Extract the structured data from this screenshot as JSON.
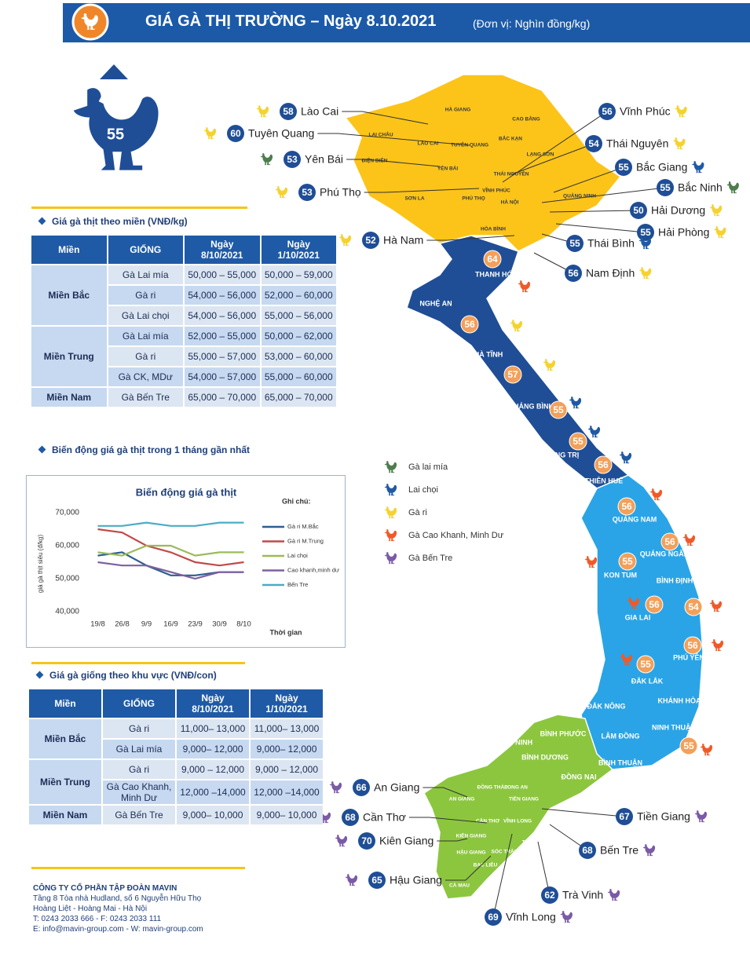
{
  "header": {
    "title": "GIÁ GÀ THỊ TRƯỜNG – Ngày 8.10.2021",
    "unit": "(Đơn vị: Nghìn đồng/kg)"
  },
  "national_price": 55,
  "meat_table": {
    "title": "Giá gà thịt theo miền (VNĐ/kg)",
    "columns": [
      "Miền",
      "GIỐNG",
      "Ngày 8/10/2021",
      "Ngày 1/10/2021"
    ],
    "groups": [
      {
        "region": "Miền Bắc",
        "rows": [
          [
            "Gà Lai mía",
            "50,000 – 55,000",
            "50,000 – 59,000"
          ],
          [
            "Gà ri",
            "54,000 – 56,000",
            "52,000 – 60,000"
          ],
          [
            "Gà Lai chọi",
            "54,000 – 56,000",
            "55,000 – 56,000"
          ]
        ]
      },
      {
        "region": "Miền Trung",
        "rows": [
          [
            "Gà Lai mía",
            "52,000 – 55,000",
            "50,000 – 62,000"
          ],
          [
            "Gà ri",
            "55,000 – 57,000",
            "53,000 – 60,000"
          ],
          [
            "Gà CK, MDư",
            "54,000 – 57,000",
            "55,000 – 60,000"
          ]
        ]
      },
      {
        "region": "Miền Nam",
        "rows": [
          [
            "Gà Bến Tre",
            "65,000 – 70,000",
            "65,000 – 70,000"
          ]
        ]
      }
    ]
  },
  "trend_title": "Biến động giá gà thịt trong 1 tháng gần nhất",
  "chart_data": {
    "type": "line",
    "title": "Biến động giá gà thịt",
    "y_label": "giá gà thịt siêu (đ/kg)",
    "x_label": "Thời gian",
    "legend_title": "Ghi chú:",
    "categories": [
      "19/8",
      "26/8",
      "9/9",
      "16/9",
      "23/9",
      "30/9",
      "8/10"
    ],
    "series": [
      {
        "name": "Gà ri M.Bắc",
        "color": "#2f5f8f",
        "values": [
          57000,
          58000,
          54000,
          51000,
          51000,
          52000,
          52000
        ]
      },
      {
        "name": "Gà ri M.Trung",
        "color": "#be4b48",
        "values": [
          65000,
          64000,
          60000,
          58000,
          55000,
          54000,
          55000
        ]
      },
      {
        "name": "Lai chọi",
        "color": "#9bbb59",
        "values": [
          58000,
          57000,
          60000,
          60000,
          57000,
          58000,
          58000
        ]
      },
      {
        "name": "Cao khanh,minh dư",
        "color": "#7d60a0",
        "values": [
          55000,
          54000,
          54000,
          52000,
          50000,
          52000,
          52000
        ]
      },
      {
        "name": "Bến Tre",
        "color": "#4bacc6",
        "values": [
          66000,
          66000,
          67000,
          66000,
          66000,
          67000,
          67000
        ]
      }
    ],
    "ylim": [
      40000,
      70000
    ],
    "yticks": [
      {
        "value": 40000,
        "label": "40,000"
      },
      {
        "value": 50000,
        "label": "50,000"
      },
      {
        "value": 60000,
        "label": "60,000"
      },
      {
        "value": 70000,
        "label": "70,000"
      }
    ],
    "grid": false
  },
  "chick_table": {
    "title": "Giá gà giống theo khu vực (VNĐ/con)",
    "columns": [
      "Miền",
      "GIỐNG",
      "Ngày 8/10/2021",
      "Ngày 1/10/2021"
    ],
    "groups": [
      {
        "region": "Miền Bắc",
        "rows": [
          [
            "Gà ri",
            "11,000– 13,000",
            "11,000– 13,000"
          ],
          [
            "Gà Lai mía",
            "9,000– 12,000",
            "9,000– 12,000"
          ]
        ]
      },
      {
        "region": "Miền Trung",
        "rows": [
          [
            "Gà ri",
            "9,000 – 12,000",
            "9,000 – 12,000"
          ],
          [
            "Gà Cao Khanh, Minh Dư",
            "12,000 –14,000",
            "12,000 –14,000"
          ]
        ]
      },
      {
        "region": "Miền Nam",
        "rows": [
          [
            "Gà Bến Tre",
            "9,000– 10,000",
            "9,000– 10,000"
          ]
        ]
      }
    ]
  },
  "company": {
    "name": "CÔNG TY CỔ PHẦN TẬP ĐOÀN MAVIN",
    "lines": [
      "Tầng 8 Tòa nhà Hudland, số 6 Nguyễn Hữu Thọ",
      "Hoàng Liệt - Hoàng Mai - Hà Nội",
      "T: 0243 2033 666 - F: 0243 2033 111",
      "E: info@mavin-group.com - W: mavin-group.com"
    ]
  },
  "legend": [
    {
      "name": "Gà lai mía",
      "color": "#4e7d4e"
    },
    {
      "name": "Lai chọi",
      "color": "#1f5aa6"
    },
    {
      "name": "Gà ri",
      "color": "#f5d22e"
    },
    {
      "name": "Gà Cao Khanh, Minh Dư",
      "color": "#f05a28"
    },
    {
      "name": "Gà Bến Tre",
      "color": "#7b5aa6"
    }
  ],
  "callouts": [
    {
      "name": "Lào Cai",
      "price": 58,
      "color": "#f5d22e"
    },
    {
      "name": "Tuyên Quang",
      "price": 60,
      "color": "#f5d22e"
    },
    {
      "name": "Yên Bái",
      "price": 53,
      "color": "#4e7d4e"
    },
    {
      "name": "Phú Thọ",
      "price": 53,
      "color": "#f5d22e"
    },
    {
      "name": "Vĩnh Phúc",
      "price": 56,
      "color": "#f5d22e"
    },
    {
      "name": "Thái Nguyên",
      "price": 54,
      "color": "#f5d22e"
    },
    {
      "name": "Bắc Giang",
      "price": 55,
      "color": "#1f5aa6"
    },
    {
      "name": "Bắc Ninh",
      "price": 55,
      "color": "#4e7d4e"
    },
    {
      "name": "Hải Dương",
      "price": 50,
      "color": "#f5d22e"
    },
    {
      "name": "Hải Phòng",
      "price": 55,
      "color": "#f5d22e"
    },
    {
      "name": "Hà Nam",
      "price": 52,
      "color": "#f5d22e"
    },
    {
      "name": "Thái Bình",
      "price": 55,
      "color": "#1f5aa6"
    },
    {
      "name": "Nam Định",
      "price": 56,
      "color": "#f5d22e"
    },
    {
      "name": "An Giang",
      "price": 66,
      "color": "#7b5aa6"
    },
    {
      "name": "Cần Thơ",
      "price": 68,
      "color": "#7b5aa6"
    },
    {
      "name": "Kiên Giang",
      "price": 70,
      "color": "#7b5aa6"
    },
    {
      "name": "Hậu Giang",
      "price": 65,
      "color": "#7b5aa6"
    },
    {
      "name": "Tiền Giang",
      "price": 67,
      "color": "#7b5aa6"
    },
    {
      "name": "Bến Tre",
      "price": 68,
      "color": "#7b5aa6"
    },
    {
      "name": "Trà Vinh",
      "price": 62,
      "color": "#7b5aa6"
    },
    {
      "name": "Vĩnh Long",
      "price": 69,
      "color": "#7b5aa6"
    }
  ],
  "markers": [
    {
      "price": 64,
      "color": "#f05a28"
    },
    {
      "price": 56,
      "color": "#f5d22e"
    },
    {
      "price": 57,
      "color": "#f5d22e"
    },
    {
      "price": 55,
      "color": "#1f5aa6"
    },
    {
      "price": 55,
      "color": "#1f5aa6"
    },
    {
      "price": 56,
      "color": "#1f5aa6"
    },
    {
      "price": 56,
      "color": "#f05a28"
    },
    {
      "price": 56,
      "color": "#f05a28"
    },
    {
      "price": 55,
      "color": "#f05a28"
    },
    {
      "price": 56,
      "color": "#f05a28"
    },
    {
      "price": 54,
      "color": "#f05a28"
    },
    {
      "price": 56,
      "color": "#f05a28"
    },
    {
      "price": 55,
      "color": "#f05a28"
    },
    {
      "price": 55,
      "color": "#f05a28"
    }
  ],
  "map_labels": [
    "LAI CHÂU",
    "HÀ GIANG",
    "TUYÊN QUANG",
    "CAO BẰNG",
    "BẮC KẠN",
    "LẠNG SƠN",
    "ĐIỆN BIÊN",
    "LÀO CAI",
    "YÊN BÁI",
    "THÁI NGUYÊN",
    "SƠN LA",
    "PHÚ THỌ",
    "VĨNH PHÚC",
    "HÀ NỘI",
    "QUẢNG NINH",
    "HÒA BÌNH",
    "THANH HÓA",
    "NGHỆ AN",
    "HÀ TĨNH",
    "QUẢNG BÌNH",
    "QUẢNG TRỊ",
    "THỪA THIÊN HUẾ",
    "QUẢNG NAM",
    "QUẢNG NGÃI",
    "KON TUM",
    "BÌNH ĐỊNH",
    "GIA LAI",
    "PHÚ YÊN",
    "ĐẮK LẮK",
    "KHÁNH HÒA",
    "ĐẮK NÔNG",
    "NINH THUẬN",
    "LÂM ĐỒNG",
    "BÌNH THUẬN",
    "BÌNH PHƯỚC",
    "TÂY NINH",
    "BÌNH DƯƠNG",
    "ĐỒNG NAI",
    "LONG AN",
    "ĐỒNG THÁP",
    "AN GIANG",
    "TIỀN GIANG",
    "CẦN THƠ",
    "VĨNH LONG",
    "KIÊN GIANG",
    "HẬU GIANG",
    "TRÀ VINH",
    "SÓC TRĂNG",
    "BẠC LIÊU",
    "CÀ MAU"
  ]
}
